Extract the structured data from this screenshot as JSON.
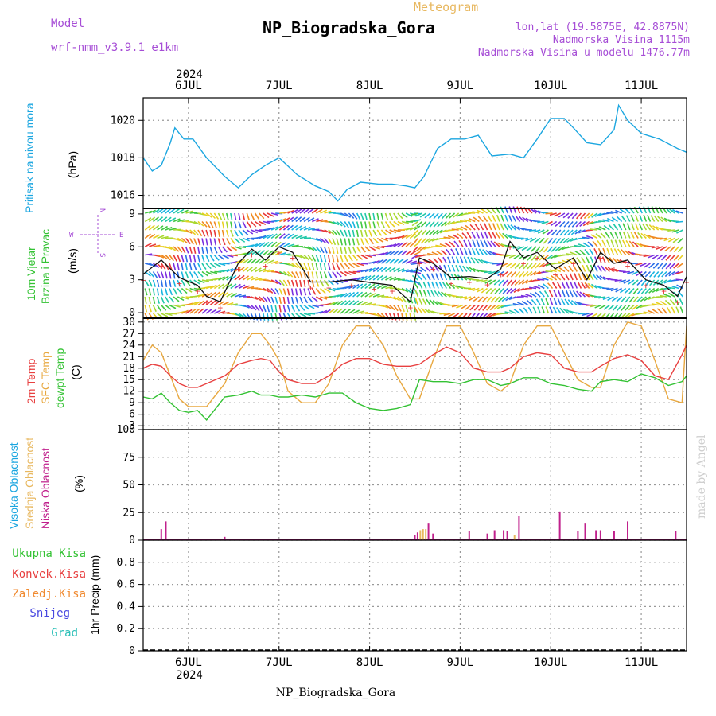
{
  "header": {
    "model_label": "Model",
    "model_name": "wrf-nmm_v3.9.1 e1km",
    "title": "NP_Biogradska_Gora",
    "subtitle": "Meteogram",
    "coords": "lon,lat (19.5875E, 42.8875N)",
    "elevation": "Nadmorska Visina 1115m",
    "model_elevation": "Nadmorska Visina u modelu 1476.77m"
  },
  "time_axis": {
    "year": "2024",
    "days": [
      "6JUL",
      "7JUL",
      "8JUL",
      "9JUL",
      "10JUL",
      "11JUL"
    ],
    "start_day": 5.5,
    "end_day": 11.5
  },
  "panels": {
    "pressure": {
      "label": "Pritisak na nivou mora",
      "unit": "(hPa)",
      "ticks": [
        "1016",
        "1018",
        "1020"
      ],
      "color": "#1ba6e0"
    },
    "wind": {
      "label_line1": "10m Vjetar",
      "label_line2": "Brzina i Pravac",
      "unit": "(m/s)",
      "ticks": [
        "0",
        "3",
        "6",
        "9"
      ],
      "compass": {
        "n": "N",
        "s": "S",
        "e": "E",
        "w": "W"
      }
    },
    "temperature": {
      "label_2m": "2m Temp",
      "label_sfc": "SFC Temp",
      "label_dew": "dewpt Temp",
      "unit": "(C)",
      "ticks": [
        "3",
        "6",
        "9",
        "12",
        "15",
        "18",
        "21",
        "24",
        "27",
        "30"
      ]
    },
    "clouds": {
      "label_high": "Visoka Oblacnost",
      "label_mid": "Srednja Oblacnost",
      "label_low": "Niska Oblacnost",
      "unit": "(%)",
      "ticks": [
        "0",
        "25",
        "50",
        "75",
        "100"
      ]
    },
    "precip": {
      "unit": "1hr Precip (mm)",
      "ticks": [
        "0",
        "0.2",
        "0.4",
        "0.6",
        "0.8"
      ],
      "legend": [
        {
          "label": "Ukupna Kisa",
          "color": "#33c233"
        },
        {
          "label": "Konvek.Kisa",
          "color": "#e84040"
        },
        {
          "label": "Zaledj.Kisa",
          "color": "#f08a30"
        },
        {
          "label": "Snijeg",
          "color": "#4848e0"
        },
        {
          "label": "Grad",
          "color": "#2ec0b8"
        }
      ]
    }
  },
  "footer": {
    "station": "NP_Biogradska_Gora",
    "watermark": "made by Angel"
  },
  "chart_data": {
    "type": "line",
    "x_unit": "day of July 2024",
    "xlim": [
      5.5,
      11.5
    ],
    "pressure": {
      "ylim": [
        1015.3,
        1021.2
      ],
      "x": [
        5.5,
        5.6,
        5.7,
        5.8,
        5.85,
        5.95,
        6.05,
        6.2,
        6.4,
        6.55,
        6.7,
        6.85,
        7.0,
        7.2,
        7.4,
        7.55,
        7.65,
        7.75,
        7.9,
        8.1,
        8.25,
        8.4,
        8.5,
        8.6,
        8.75,
        8.9,
        9.05,
        9.2,
        9.35,
        9.55,
        9.7,
        9.85,
        10.0,
        10.15,
        10.25,
        10.4,
        10.55,
        10.7,
        10.75,
        10.85,
        11.0,
        11.2,
        11.4,
        11.5
      ],
      "values": [
        1018.0,
        1017.3,
        1017.6,
        1018.8,
        1019.6,
        1019.0,
        1019.0,
        1018.0,
        1017.0,
        1016.4,
        1017.1,
        1017.6,
        1018.0,
        1017.1,
        1016.5,
        1016.2,
        1015.7,
        1016.3,
        1016.7,
        1016.6,
        1016.6,
        1016.5,
        1016.4,
        1017.0,
        1018.5,
        1019.0,
        1019.0,
        1019.2,
        1018.1,
        1018.2,
        1018.0,
        1019.0,
        1020.1,
        1020.1,
        1019.6,
        1018.8,
        1018.7,
        1019.5,
        1020.8,
        1020.0,
        1019.3,
        1019.0,
        1018.5,
        1018.3
      ]
    },
    "wind": {
      "ylim": [
        -0.5,
        9.5
      ],
      "x": [
        5.5,
        5.7,
        5.9,
        6.1,
        6.2,
        6.35,
        6.55,
        6.7,
        6.85,
        7.0,
        7.15,
        7.35,
        7.55,
        7.8,
        8.05,
        8.25,
        8.45,
        8.55,
        8.7,
        8.9,
        9.1,
        9.3,
        9.45,
        9.55,
        9.7,
        9.85,
        10.05,
        10.25,
        10.4,
        10.55,
        10.7,
        10.85,
        11.05,
        11.25,
        11.4,
        11.5
      ],
      "values": [
        3.5,
        4.8,
        3.2,
        2.5,
        1.5,
        1.0,
        4.5,
        5.8,
        4.8,
        6.0,
        5.5,
        2.8,
        2.8,
        3.0,
        2.7,
        2.5,
        1.0,
        5.0,
        4.5,
        3.2,
        3.3,
        3.1,
        4.0,
        6.5,
        5.0,
        5.5,
        4.0,
        5.0,
        3.0,
        5.5,
        4.5,
        4.8,
        3.0,
        2.5,
        1.5,
        3.3
      ]
    },
    "temperature": {
      "ylim": [
        2,
        31
      ],
      "x": [
        5.5,
        5.6,
        5.7,
        5.8,
        5.9,
        6.0,
        6.1,
        6.2,
        6.4,
        6.55,
        6.7,
        6.8,
        6.9,
        7.0,
        7.1,
        7.25,
        7.4,
        7.55,
        7.7,
        7.85,
        8.0,
        8.15,
        8.3,
        8.45,
        8.55,
        8.7,
        8.85,
        9.0,
        9.15,
        9.3,
        9.45,
        9.55,
        9.7,
        9.85,
        10.0,
        10.15,
        10.3,
        10.45,
        10.55,
        10.7,
        10.85,
        11.0,
        11.15,
        11.3,
        11.45,
        11.5
      ],
      "t2m": [
        18,
        19,
        18.5,
        16,
        14,
        13,
        13,
        14,
        16,
        19,
        20,
        20.5,
        20,
        17,
        15,
        14,
        14,
        16,
        19,
        20.5,
        20.5,
        19,
        18.5,
        18.5,
        19,
        21.5,
        23.5,
        22,
        18,
        17,
        17,
        18,
        21,
        22,
        21.5,
        18,
        17,
        17,
        18.5,
        20.5,
        21.5,
        20,
        16,
        15,
        21.5,
        24
      ],
      "tsfc": [
        20,
        24,
        22,
        16,
        10,
        8,
        8,
        8,
        14,
        22,
        27,
        27,
        24,
        20,
        12,
        9,
        9,
        14,
        24,
        29,
        29,
        24,
        16,
        10,
        10,
        20,
        29,
        29,
        22,
        14,
        12,
        14,
        24,
        29,
        29,
        22,
        15,
        13,
        13,
        24,
        30,
        29,
        20,
        10,
        9,
        29
      ],
      "tdew": [
        10.5,
        10.0,
        11.5,
        9.0,
        7.0,
        6.5,
        7.0,
        4.5,
        10.5,
        11.0,
        12.0,
        11.0,
        11.0,
        10.5,
        10.5,
        11.0,
        10.5,
        11.5,
        11.5,
        9.0,
        7.5,
        7.0,
        7.5,
        8.5,
        15.0,
        14.5,
        14.5,
        14.0,
        15.0,
        15.0,
        13.5,
        14.0,
        15.5,
        15.5,
        14.0,
        13.5,
        12.5,
        12.0,
        14.5,
        15.0,
        14.5,
        16.5,
        15.5,
        13.5,
        14.5,
        16.0
      ]
    },
    "clouds": {
      "ylim": [
        0,
        100
      ],
      "bars": [
        {
          "x": 5.7,
          "v": 10,
          "c": "#c0208c"
        },
        {
          "x": 5.75,
          "v": 17,
          "c": "#c0208c"
        },
        {
          "x": 6.4,
          "v": 3,
          "c": "#c0208c"
        },
        {
          "x": 8.5,
          "v": 5,
          "c": "#c0208c"
        },
        {
          "x": 8.53,
          "v": 7,
          "c": "#c0208c"
        },
        {
          "x": 8.56,
          "v": 9,
          "c": "#e8b860"
        },
        {
          "x": 8.59,
          "v": 10,
          "c": "#e8b860"
        },
        {
          "x": 8.62,
          "v": 10,
          "c": "#e8b860"
        },
        {
          "x": 8.65,
          "v": 15,
          "c": "#c0208c"
        },
        {
          "x": 8.7,
          "v": 6,
          "c": "#c0208c"
        },
        {
          "x": 9.1,
          "v": 8,
          "c": "#c0208c"
        },
        {
          "x": 9.3,
          "v": 6,
          "c": "#c0208c"
        },
        {
          "x": 9.38,
          "v": 9,
          "c": "#c0208c"
        },
        {
          "x": 9.48,
          "v": 9,
          "c": "#c0208c"
        },
        {
          "x": 9.52,
          "v": 8,
          "c": "#c0208c"
        },
        {
          "x": 9.6,
          "v": 5,
          "c": "#e8b860"
        },
        {
          "x": 9.65,
          "v": 22,
          "c": "#c0208c"
        },
        {
          "x": 10.1,
          "v": 26,
          "c": "#c0208c"
        },
        {
          "x": 10.3,
          "v": 8,
          "c": "#c0208c"
        },
        {
          "x": 10.38,
          "v": 15,
          "c": "#c0208c"
        },
        {
          "x": 10.5,
          "v": 9,
          "c": "#c0208c"
        },
        {
          "x": 10.55,
          "v": 9,
          "c": "#c0208c"
        },
        {
          "x": 10.7,
          "v": 8,
          "c": "#c0208c"
        },
        {
          "x": 10.85,
          "v": 17,
          "c": "#c0208c"
        },
        {
          "x": 11.38,
          "v": 8,
          "c": "#c0208c"
        }
      ]
    },
    "precip": {
      "ylim": [
        0,
        1
      ],
      "values": []
    }
  }
}
